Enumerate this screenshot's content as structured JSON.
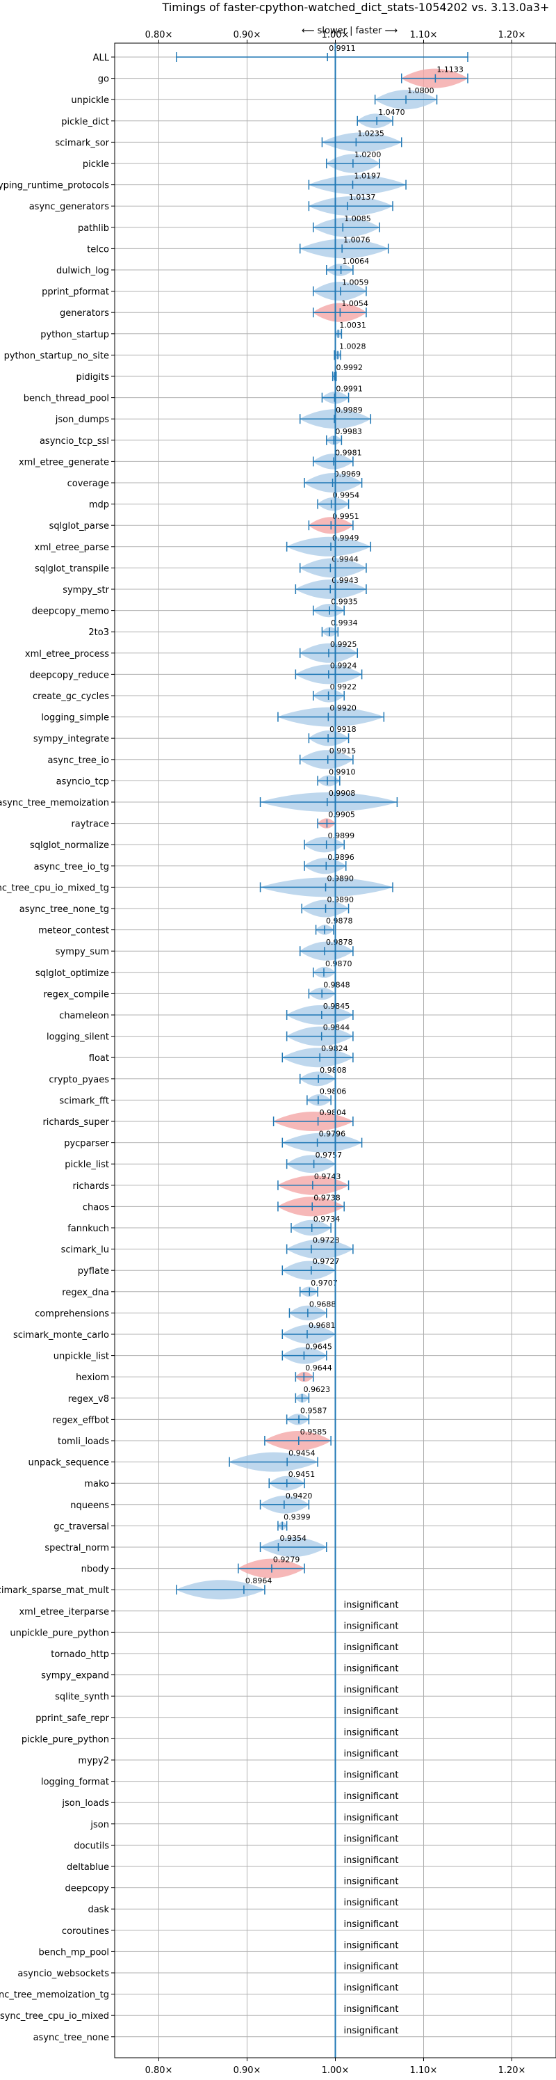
{
  "chart_data": {
    "type": "violin",
    "title": "Timings of faster-cpython-watched_dict_stats-1054202 vs. 3.13.0a3+",
    "xlabel_annotation": "⟵ slower | faster ⟶",
    "xlim": [
      0.75,
      1.25
    ],
    "x_ticks": [
      0.8,
      0.9,
      1.0,
      1.1,
      1.2
    ],
    "x_tick_labels": [
      "0.80×",
      "0.90×",
      "1.00×",
      "1.10×",
      "1.20×"
    ],
    "reference_line": 1.0,
    "grid": true,
    "insignificant_label": "insignificant",
    "colors": {
      "faster": "#f4a6a6",
      "slower": "#aecde8",
      "line": "#1f77b4",
      "grid": "#b0b0b0"
    },
    "benchmarks": [
      {
        "name": "ALL",
        "value": 0.9911,
        "label": "0.9911",
        "min": 0.82,
        "max": 1.15,
        "color": "none"
      },
      {
        "name": "go",
        "value": 1.1133,
        "label": "1.1133",
        "min": 1.075,
        "max": 1.15,
        "color": "faster"
      },
      {
        "name": "unpickle",
        "value": 1.08,
        "label": "1.0800",
        "min": 1.045,
        "max": 1.115,
        "color": "slower"
      },
      {
        "name": "pickle_dict",
        "value": 1.047,
        "label": "1.0470",
        "min": 1.025,
        "max": 1.065,
        "color": "slower"
      },
      {
        "name": "scimark_sor",
        "value": 1.0235,
        "label": "1.0235",
        "min": 0.985,
        "max": 1.075,
        "color": "slower"
      },
      {
        "name": "pickle",
        "value": 1.02,
        "label": "1.0200",
        "min": 0.99,
        "max": 1.05,
        "color": "slower"
      },
      {
        "name": "typing_runtime_protocols",
        "value": 1.0197,
        "label": "1.0197",
        "min": 0.97,
        "max": 1.08,
        "color": "slower"
      },
      {
        "name": "async_generators",
        "value": 1.0137,
        "label": "1.0137",
        "min": 0.97,
        "max": 1.065,
        "color": "slower"
      },
      {
        "name": "pathlib",
        "value": 1.0085,
        "label": "1.0085",
        "min": 0.975,
        "max": 1.05,
        "color": "slower"
      },
      {
        "name": "telco",
        "value": 1.0076,
        "label": "1.0076",
        "min": 0.96,
        "max": 1.06,
        "color": "slower"
      },
      {
        "name": "dulwich_log",
        "value": 1.0064,
        "label": "1.0064",
        "min": 0.99,
        "max": 1.02,
        "color": "slower"
      },
      {
        "name": "pprint_pformat",
        "value": 1.0059,
        "label": "1.0059",
        "min": 0.975,
        "max": 1.035,
        "color": "slower"
      },
      {
        "name": "generators",
        "value": 1.0054,
        "label": "1.0054",
        "min": 0.975,
        "max": 1.035,
        "color": "faster"
      },
      {
        "name": "python_startup",
        "value": 1.0031,
        "label": "1.0031",
        "min": 1.0,
        "max": 1.007,
        "color": "slower"
      },
      {
        "name": "python_startup_no_site",
        "value": 1.0028,
        "label": "1.0028",
        "min": 0.999,
        "max": 1.006,
        "color": "slower"
      },
      {
        "name": "pidigits",
        "value": 0.9992,
        "label": "0.9992",
        "min": 0.997,
        "max": 1.001,
        "color": "slower"
      },
      {
        "name": "bench_thread_pool",
        "value": 0.9991,
        "label": "0.9991",
        "min": 0.985,
        "max": 1.015,
        "color": "slower"
      },
      {
        "name": "json_dumps",
        "value": 0.9989,
        "label": "0.9989",
        "min": 0.96,
        "max": 1.04,
        "color": "slower"
      },
      {
        "name": "asyncio_tcp_ssl",
        "value": 0.9983,
        "label": "0.9983",
        "min": 0.99,
        "max": 1.007,
        "color": "slower"
      },
      {
        "name": "xml_etree_generate",
        "value": 0.9981,
        "label": "0.9981",
        "min": 0.975,
        "max": 1.02,
        "color": "slower"
      },
      {
        "name": "coverage",
        "value": 0.9969,
        "label": "0.9969",
        "min": 0.965,
        "max": 1.03,
        "color": "slower"
      },
      {
        "name": "mdp",
        "value": 0.9954,
        "label": "0.9954",
        "min": 0.98,
        "max": 1.015,
        "color": "slower"
      },
      {
        "name": "sqlglot_parse",
        "value": 0.9951,
        "label": "0.9951",
        "min": 0.97,
        "max": 1.02,
        "color": "faster"
      },
      {
        "name": "xml_etree_parse",
        "value": 0.9949,
        "label": "0.9949",
        "min": 0.945,
        "max": 1.04,
        "color": "slower"
      },
      {
        "name": "sqlglot_transpile",
        "value": 0.9944,
        "label": "0.9944",
        "min": 0.96,
        "max": 1.035,
        "color": "slower"
      },
      {
        "name": "sympy_str",
        "value": 0.9943,
        "label": "0.9943",
        "min": 0.955,
        "max": 1.035,
        "color": "slower"
      },
      {
        "name": "deepcopy_memo",
        "value": 0.9935,
        "label": "0.9935",
        "min": 0.975,
        "max": 1.01,
        "color": "slower"
      },
      {
        "name": "2to3",
        "value": 0.9934,
        "label": "0.9934",
        "min": 0.985,
        "max": 1.003,
        "color": "slower"
      },
      {
        "name": "xml_etree_process",
        "value": 0.9925,
        "label": "0.9925",
        "min": 0.96,
        "max": 1.025,
        "color": "slower"
      },
      {
        "name": "deepcopy_reduce",
        "value": 0.9924,
        "label": "0.9924",
        "min": 0.955,
        "max": 1.03,
        "color": "slower"
      },
      {
        "name": "create_gc_cycles",
        "value": 0.9922,
        "label": "0.9922",
        "min": 0.975,
        "max": 1.01,
        "color": "slower"
      },
      {
        "name": "logging_simple",
        "value": 0.992,
        "label": "0.9920",
        "min": 0.935,
        "max": 1.055,
        "color": "slower"
      },
      {
        "name": "sympy_integrate",
        "value": 0.9918,
        "label": "0.9918",
        "min": 0.97,
        "max": 1.015,
        "color": "slower"
      },
      {
        "name": "async_tree_io",
        "value": 0.9915,
        "label": "0.9915",
        "min": 0.96,
        "max": 1.02,
        "color": "slower"
      },
      {
        "name": "asyncio_tcp",
        "value": 0.991,
        "label": "0.9910",
        "min": 0.98,
        "max": 1.005,
        "color": "slower"
      },
      {
        "name": "async_tree_memoization",
        "value": 0.9908,
        "label": "0.9908",
        "min": 0.915,
        "max": 1.07,
        "color": "slower"
      },
      {
        "name": "raytrace",
        "value": 0.9905,
        "label": "0.9905",
        "min": 0.98,
        "max": 1.0,
        "color": "faster"
      },
      {
        "name": "sqlglot_normalize",
        "value": 0.9899,
        "label": "0.9899",
        "min": 0.965,
        "max": 1.01,
        "color": "slower"
      },
      {
        "name": "async_tree_io_tg",
        "value": 0.9896,
        "label": "0.9896",
        "min": 0.965,
        "max": 1.012,
        "color": "slower"
      },
      {
        "name": "async_tree_cpu_io_mixed_tg",
        "value": 0.989,
        "label": "0.9890",
        "min": 0.915,
        "max": 1.065,
        "color": "slower"
      },
      {
        "name": "async_tree_none_tg",
        "value": 0.989,
        "label": "0.9890",
        "min": 0.962,
        "max": 1.015,
        "color": "slower"
      },
      {
        "name": "meteor_contest",
        "value": 0.9878,
        "label": "0.9878",
        "min": 0.978,
        "max": 0.998,
        "color": "slower"
      },
      {
        "name": "sympy_sum",
        "value": 0.9878,
        "label": "0.9878",
        "min": 0.96,
        "max": 1.02,
        "color": "slower"
      },
      {
        "name": "sqlglot_optimize",
        "value": 0.987,
        "label": "0.9870",
        "min": 0.975,
        "max": 1.0,
        "color": "slower"
      },
      {
        "name": "regex_compile",
        "value": 0.9848,
        "label": "0.9848",
        "min": 0.97,
        "max": 1.0,
        "color": "slower"
      },
      {
        "name": "chameleon",
        "value": 0.9845,
        "label": "0.9845",
        "min": 0.945,
        "max": 1.02,
        "color": "slower"
      },
      {
        "name": "logging_silent",
        "value": 0.9844,
        "label": "0.9844",
        "min": 0.945,
        "max": 1.02,
        "color": "slower"
      },
      {
        "name": "float",
        "value": 0.9824,
        "label": "0.9824",
        "min": 0.94,
        "max": 1.02,
        "color": "slower"
      },
      {
        "name": "crypto_pyaes",
        "value": 0.9808,
        "label": "0.9808",
        "min": 0.96,
        "max": 1.0,
        "color": "slower"
      },
      {
        "name": "scimark_fft",
        "value": 0.9806,
        "label": "0.9806",
        "min": 0.968,
        "max": 0.995,
        "color": "slower"
      },
      {
        "name": "richards_super",
        "value": 0.9804,
        "label": "0.9804",
        "min": 0.93,
        "max": 1.02,
        "color": "faster"
      },
      {
        "name": "pycparser",
        "value": 0.9796,
        "label": "0.9796",
        "min": 0.94,
        "max": 1.03,
        "color": "slower"
      },
      {
        "name": "pickle_list",
        "value": 0.9757,
        "label": "0.9757",
        "min": 0.945,
        "max": 1.0,
        "color": "slower"
      },
      {
        "name": "richards",
        "value": 0.9743,
        "label": "0.9743",
        "min": 0.935,
        "max": 1.015,
        "color": "faster"
      },
      {
        "name": "chaos",
        "value": 0.9738,
        "label": "0.9738",
        "min": 0.935,
        "max": 1.01,
        "color": "faster"
      },
      {
        "name": "fannkuch",
        "value": 0.9734,
        "label": "0.9734",
        "min": 0.95,
        "max": 0.995,
        "color": "slower"
      },
      {
        "name": "scimark_lu",
        "value": 0.9728,
        "label": "0.9728",
        "min": 0.945,
        "max": 1.02,
        "color": "slower"
      },
      {
        "name": "pyflate",
        "value": 0.9727,
        "label": "0.9727",
        "min": 0.94,
        "max": 1.0,
        "color": "slower"
      },
      {
        "name": "regex_dna",
        "value": 0.9707,
        "label": "0.9707",
        "min": 0.96,
        "max": 0.98,
        "color": "slower"
      },
      {
        "name": "comprehensions",
        "value": 0.9688,
        "label": "0.9688",
        "min": 0.948,
        "max": 0.99,
        "color": "slower"
      },
      {
        "name": "scimark_monte_carlo",
        "value": 0.9681,
        "label": "0.9681",
        "min": 0.94,
        "max": 1.0,
        "color": "slower"
      },
      {
        "name": "unpickle_list",
        "value": 0.9645,
        "label": "0.9645",
        "min": 0.94,
        "max": 0.99,
        "color": "slower"
      },
      {
        "name": "hexiom",
        "value": 0.9644,
        "label": "0.9644",
        "min": 0.955,
        "max": 0.975,
        "color": "faster"
      },
      {
        "name": "regex_v8",
        "value": 0.9623,
        "label": "0.9623",
        "min": 0.955,
        "max": 0.97,
        "color": "slower"
      },
      {
        "name": "regex_effbot",
        "value": 0.9587,
        "label": "0.9587",
        "min": 0.945,
        "max": 0.97,
        "color": "slower"
      },
      {
        "name": "tomli_loads",
        "value": 0.9585,
        "label": "0.9585",
        "min": 0.92,
        "max": 0.995,
        "color": "faster"
      },
      {
        "name": "unpack_sequence",
        "value": 0.9454,
        "label": "0.9454",
        "min": 0.88,
        "max": 0.98,
        "color": "slower"
      },
      {
        "name": "mako",
        "value": 0.9451,
        "label": "0.9451",
        "min": 0.925,
        "max": 0.965,
        "color": "slower"
      },
      {
        "name": "nqueens",
        "value": 0.942,
        "label": "0.9420",
        "min": 0.915,
        "max": 0.97,
        "color": "slower"
      },
      {
        "name": "gc_traversal",
        "value": 0.9399,
        "label": "0.9399",
        "min": 0.935,
        "max": 0.945,
        "color": "slower"
      },
      {
        "name": "spectral_norm",
        "value": 0.9354,
        "label": "0.9354",
        "min": 0.915,
        "max": 0.99,
        "color": "slower"
      },
      {
        "name": "nbody",
        "value": 0.9279,
        "label": "0.9279",
        "min": 0.89,
        "max": 0.965,
        "color": "faster"
      },
      {
        "name": "scimark_sparse_mat_mult",
        "value": 0.8964,
        "label": "0.8964",
        "min": 0.82,
        "max": 0.92,
        "color": "slower"
      },
      {
        "name": "xml_etree_iterparse",
        "insignificant": true
      },
      {
        "name": "unpickle_pure_python",
        "insignificant": true
      },
      {
        "name": "tornado_http",
        "insignificant": true
      },
      {
        "name": "sympy_expand",
        "insignificant": true
      },
      {
        "name": "sqlite_synth",
        "insignificant": true
      },
      {
        "name": "pprint_safe_repr",
        "insignificant": true
      },
      {
        "name": "pickle_pure_python",
        "insignificant": true
      },
      {
        "name": "mypy2",
        "insignificant": true
      },
      {
        "name": "logging_format",
        "insignificant": true
      },
      {
        "name": "json_loads",
        "insignificant": true
      },
      {
        "name": "json",
        "insignificant": true
      },
      {
        "name": "docutils",
        "insignificant": true
      },
      {
        "name": "deltablue",
        "insignificant": true
      },
      {
        "name": "deepcopy",
        "insignificant": true
      },
      {
        "name": "dask",
        "insignificant": true
      },
      {
        "name": "coroutines",
        "insignificant": true
      },
      {
        "name": "bench_mp_pool",
        "insignificant": true
      },
      {
        "name": "asyncio_websockets",
        "insignificant": true
      },
      {
        "name": "async_tree_memoization_tg",
        "insignificant": true
      },
      {
        "name": "async_tree_cpu_io_mixed",
        "insignificant": true
      },
      {
        "name": "async_tree_none",
        "insignificant": true
      }
    ]
  }
}
